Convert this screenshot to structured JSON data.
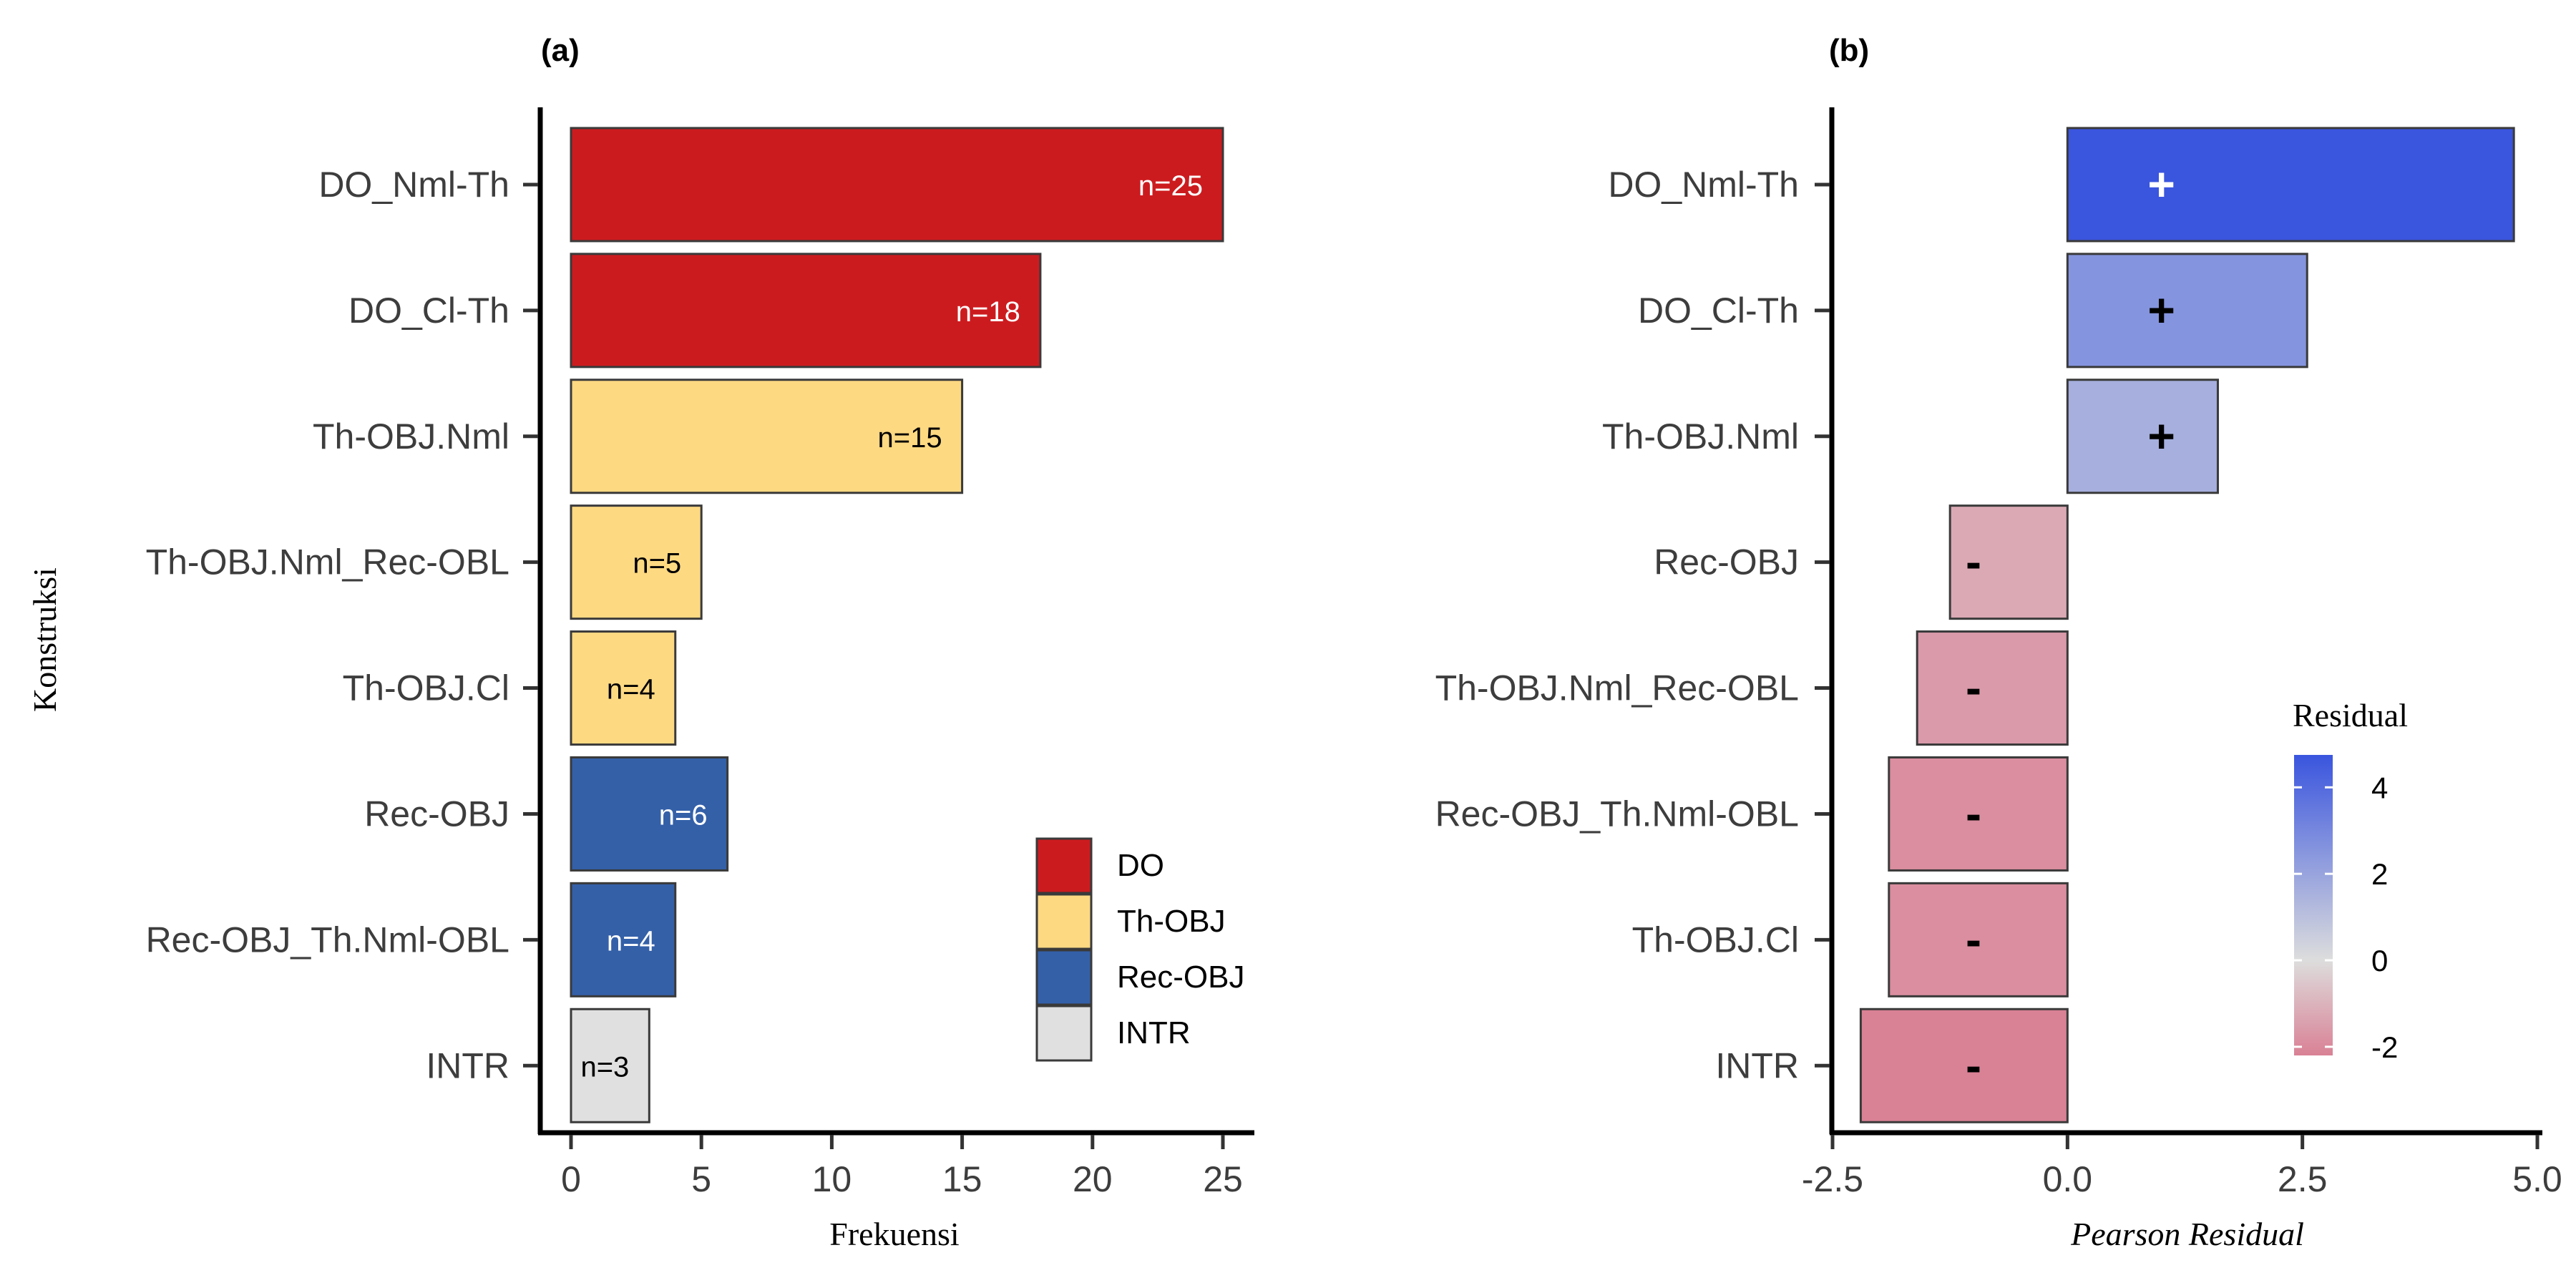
{
  "chart_data": [
    {
      "panel_label": "(a)",
      "type": "bar",
      "orientation": "horizontal",
      "xlabel": "Frekuensi",
      "ylabel": "Konstruksi",
      "xlim": [
        0,
        25
      ],
      "xticks": [
        0,
        5,
        10,
        15,
        20,
        25
      ],
      "categories": [
        "DO_Nml-Th",
        "DO_Cl-Th",
        "Th-OBJ.Nml",
        "Th-OBJ.Nml_Rec-OBL",
        "Th-OBJ.Cl",
        "Rec-OBJ",
        "Rec-OBJ_Th.Nml-OBL",
        "INTR"
      ],
      "values": [
        25,
        18,
        15,
        5,
        4,
        6,
        4,
        3
      ],
      "groups": [
        "DO",
        "DO",
        "Th-OBJ",
        "Th-OBJ",
        "Th-OBJ",
        "Rec-OBJ",
        "Rec-OBJ",
        "INTR"
      ],
      "data_labels": [
        "n=25",
        "n=18",
        "n=15",
        "n=5",
        "n=4",
        "n=6",
        "n=4",
        "n=3"
      ],
      "legend": {
        "placement": "bottom-right",
        "entries": [
          {
            "name": "DO",
            "color": "#cc1b1f"
          },
          {
            "name": "Th-OBJ",
            "color": "#fdd982"
          },
          {
            "name": "Rec-OBJ",
            "color": "#3460a8"
          },
          {
            "name": "INTR",
            "color": "#e0e0e0"
          }
        ]
      },
      "grid": false
    },
    {
      "panel_label": "(b)",
      "type": "bar",
      "orientation": "horizontal",
      "xlabel": "Pearson Residual",
      "ylabel": "",
      "xlim": [
        -2.5,
        5.0
      ],
      "xticks": [
        -2.5,
        0.0,
        2.5,
        5.0
      ],
      "xtick_labels": [
        "-2.5",
        "0.0",
        "2.5",
        "5.0"
      ],
      "categories": [
        "DO_Nml-Th",
        "DO_Cl-Th",
        "Th-OBJ.Nml",
        "Rec-OBJ",
        "Th-OBJ.Nml_Rec-OBL",
        "Rec-OBJ_Th.Nml-OBL",
        "Th-OBJ.Cl",
        "INTR"
      ],
      "values": [
        4.75,
        2.55,
        1.6,
        -1.25,
        -1.6,
        -1.9,
        -1.9,
        -2.2
      ],
      "signs": [
        "+",
        "+",
        "+",
        "-",
        "-",
        "-",
        "-",
        "-"
      ],
      "sign_colors": [
        "#ffffff",
        "#000000",
        "#000000",
        "#000000",
        "#000000",
        "#000000",
        "#000000",
        "#000000"
      ],
      "colorbar": {
        "title": "Residual",
        "placement": "right",
        "range": [
          -2.2,
          4.75
        ],
        "ticks": [
          4,
          2,
          0,
          -2
        ],
        "tick_labels": [
          "4",
          "2",
          "0",
          "-2"
        ],
        "colors": {
          "low": "#d98195",
          "mid": "#dddddd",
          "high": "#3a55de"
        }
      },
      "grid": false
    }
  ]
}
